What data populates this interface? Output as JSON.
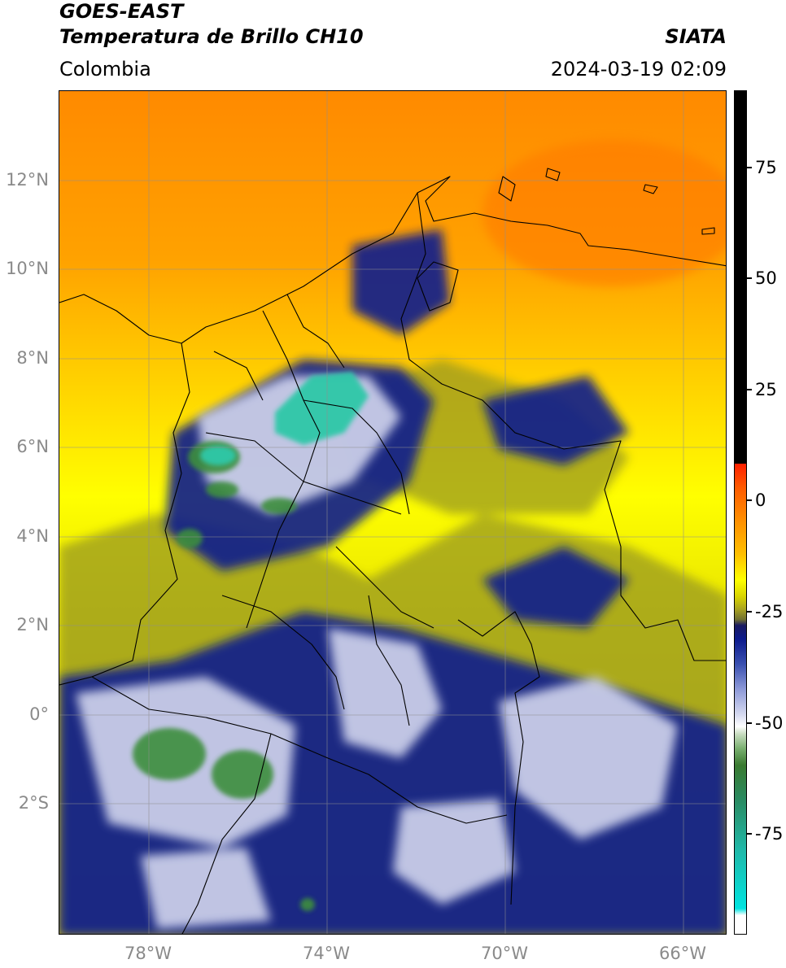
{
  "header": {
    "satellite": "GOES-EAST",
    "product": "Temperatura de Brillo CH10",
    "organization": "SIATA",
    "region": "Colombia",
    "timestamp": "2024-03-19 02:09"
  },
  "map": {
    "lat_ticks": [
      "12°N",
      "10°N",
      "8°N",
      "6°N",
      "4°N",
      "2°N",
      "0°",
      "2°S"
    ],
    "lon_ticks": [
      "78°W",
      "74°W",
      "70°W",
      "66°W"
    ],
    "extent": {
      "lon": [
        -80,
        -65
      ],
      "lat": [
        -5,
        14
      ]
    }
  },
  "colorbar": {
    "ticks": [
      "75",
      "50",
      "25",
      "0",
      "-25",
      "-50",
      "-75"
    ],
    "range": [
      -95,
      90
    ],
    "colors": {
      "warm_black": "#000000",
      "red": "#ff2000",
      "orange": "#ff8c00",
      "yellow": "#ffff00",
      "olive": "#8c8c1a",
      "navy": "#0c1a8c",
      "white": "#ffffff",
      "green": "#2d7d2d",
      "cyan": "#00e0d8"
    }
  }
}
